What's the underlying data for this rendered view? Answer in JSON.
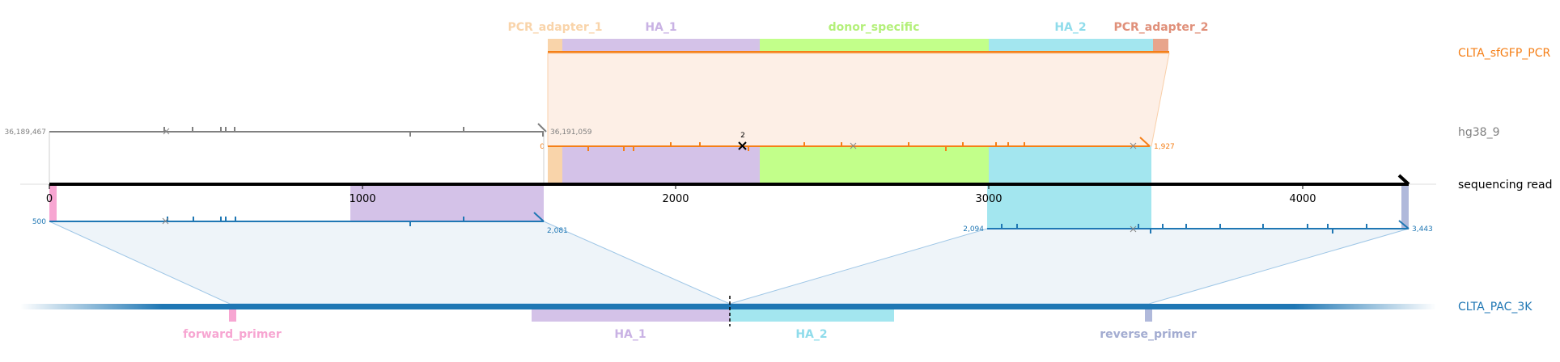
{
  "colors": {
    "orange": "#f57f17",
    "blue": "#1f77b4",
    "ha1": "#d4c2e8",
    "donor": "#c2ff8a",
    "ha2": "#a3e6ef",
    "pcr_adapter": "#f9d4aa",
    "pcr_adapter_2": "#e8a58c",
    "forward_primer": "#f7a6d2",
    "reverse_primer": "#b0b9db",
    "gray": "#808080"
  },
  "tracks": {
    "pcr_label": "CLTA_sfGFP_PCR",
    "genome_label": "hg38_9",
    "read_label": "sequencing read",
    "pac_label": "CLTA_PAC_3K"
  },
  "pcr_features": {
    "pcr_adapter_1": "PCR_adapter_1",
    "ha_1": "HA_1",
    "donor_specific": "donor_specific",
    "ha_2": "HA_2",
    "pcr_adapter_2": "PCR_adapter_2"
  },
  "pac_features": {
    "forward_primer": "forward_primer",
    "ha_1": "HA_1",
    "ha_2": "HA_2",
    "reverse_primer": "reverse_primer"
  },
  "read_axis": {
    "ticks": [
      {
        "value": 0,
        "label": "0"
      },
      {
        "value": 1000,
        "label": "1000"
      },
      {
        "value": 2000,
        "label": "2000"
      },
      {
        "value": 3000,
        "label": "3000"
      },
      {
        "value": 4000,
        "label": "4000"
      }
    ],
    "read_length": 4340
  },
  "alignments": {
    "genome": {
      "start_label": "36,189,467",
      "end_label": "36,191,059",
      "read_start": 0,
      "read_end": 1585
    },
    "pcr": {
      "start_label": "0",
      "end_label": "1,927",
      "read_start": 1590,
      "read_end": 3520,
      "insertion_label": "2"
    },
    "pac_left": {
      "start_label": "500",
      "end_label": "2,081",
      "read_start": 0,
      "read_end": 1585
    },
    "pac_right": {
      "start_label": "2,094",
      "end_label": "3,443",
      "read_start": 3000,
      "read_end": 4340
    }
  }
}
